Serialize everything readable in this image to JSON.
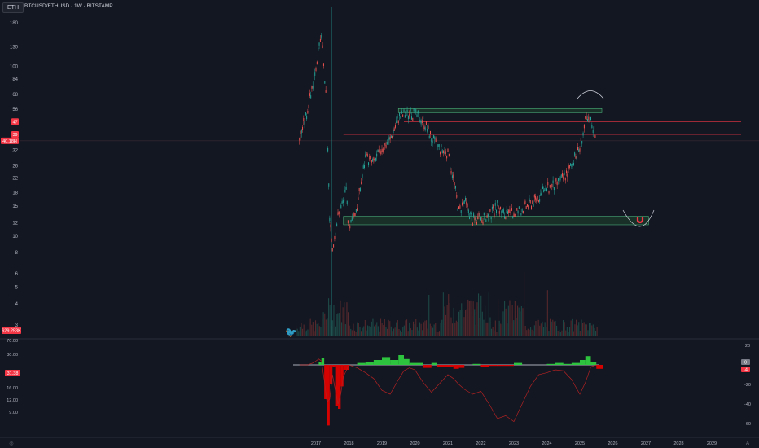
{
  "header": {
    "symbol_badge": "ETH",
    "title": "BTCUSD/ETHUSD · 1W · BITSTAMP"
  },
  "colors": {
    "background": "#131722",
    "up": "#26a69a",
    "down": "#ef5350",
    "zone_fill": "#1b3a2b",
    "zone_stroke": "#4caf7a",
    "level_line": "#f23645",
    "osc_green": "#2ecc40",
    "osc_red": "#e00000"
  },
  "price_axis": {
    "scale": "log",
    "ticks": [
      "180",
      "130",
      "100",
      "84",
      "68",
      "56",
      "47",
      "39",
      "32",
      "26",
      "22",
      "18",
      "15",
      "12",
      "10",
      "8",
      "6",
      "5",
      "4",
      "3"
    ],
    "tick_values": [
      180,
      130,
      100,
      84,
      68,
      56,
      47,
      39,
      32,
      26,
      22,
      18,
      15,
      12,
      10,
      8,
      6,
      5,
      4,
      3
    ],
    "badges": [
      {
        "label": "47",
        "value": 47,
        "color": "#f23645"
      },
      {
        "label": "39",
        "value": 39.5,
        "color": "#f23645"
      },
      {
        "label": "40.18H",
        "value": 36.2,
        "color": "#f23645"
      }
    ],
    "volume_badge": "629,253K"
  },
  "oscillator_left_axis": {
    "ticks": [
      "70.00",
      "30.00",
      "22.00",
      "16.00",
      "12.00",
      "9.00"
    ],
    "badge": "31.38"
  },
  "oscillator_right_axis": {
    "ticks": [
      "20",
      "-20",
      "-40",
      "-60"
    ],
    "tick_values": [
      20,
      -20,
      -40,
      -60
    ],
    "badges": [
      "0",
      "-4"
    ]
  },
  "time_axis": {
    "labels": [
      "2017",
      "2018",
      "2019",
      "2020",
      "2021",
      "2022",
      "2023",
      "2024",
      "2025",
      "2026",
      "2027",
      "2028",
      "2029"
    ]
  },
  "chart_data": {
    "type": "line",
    "title": "BTCUSD/ETHUSD · 1W · BITSTAMP",
    "x": [
      "2016-07",
      "2016-10",
      "2017-01",
      "2017-03",
      "2017-05",
      "2017-06",
      "2017-07",
      "2017-09",
      "2017-12",
      "2018-01",
      "2018-04",
      "2018-07",
      "2018-10",
      "2019-01",
      "2019-04",
      "2019-07",
      "2019-09",
      "2020-01",
      "2020-04",
      "2020-07",
      "2020-09",
      "2021-01",
      "2021-03",
      "2021-05",
      "2021-07",
      "2021-10",
      "2022-01",
      "2022-04",
      "2022-07",
      "2022-10",
      "2023-01",
      "2023-04",
      "2023-07",
      "2023-10",
      "2024-01",
      "2024-04",
      "2024-07",
      "2024-10",
      "2025-01",
      "2025-03",
      "2025-05",
      "2025-07"
    ],
    "series": [
      {
        "values": [
          38,
          55,
          100,
          150,
          55,
          12,
          8.5,
          13,
          18,
          11,
          15,
          29,
          27,
          33,
          37,
          50,
          52,
          52,
          48,
          38,
          34,
          30,
          22,
          14,
          16,
          12.5,
          12.5,
          13,
          15,
          13,
          13.5,
          14.5,
          15.5,
          17,
          19,
          20,
          22,
          26,
          33,
          47,
          47,
          39
        ]
      }
    ],
    "ylim": [
      2.5,
      200
    ],
    "annotations": [
      {
        "type": "zone",
        "label": "resistance zone",
        "x": [
          "2019-07",
          "2025-09"
        ],
        "y": [
          53,
          56
        ]
      },
      {
        "type": "zone",
        "label": "support zone",
        "x": [
          "2017-11",
          "2027-02"
        ],
        "y": [
          11.6,
          13
        ]
      },
      {
        "type": "hline",
        "y": 47,
        "x_start": "2019-09"
      },
      {
        "type": "hline",
        "y": 39.5,
        "x_start": "2017-11"
      }
    ]
  },
  "oscillator_data": {
    "type": "area",
    "x": [
      "2016-07",
      "2016-10",
      "2016-12",
      "2017-02",
      "2017-03",
      "2017-04",
      "2017-05",
      "2017-06",
      "2017-07",
      "2017-08",
      "2017-09",
      "2017-10",
      "2017-11",
      "2018-01",
      "2018-04",
      "2018-07",
      "2018-10",
      "2019-01",
      "2019-04",
      "2019-07",
      "2019-09",
      "2019-11",
      "2020-01",
      "2020-04",
      "2020-07",
      "2020-09",
      "2021-01",
      "2021-03",
      "2021-05",
      "2021-07",
      "2021-10",
      "2022-01",
      "2022-04",
      "2022-07",
      "2022-10",
      "2023-01",
      "2023-04",
      "2023-07",
      "2023-10",
      "2024-01",
      "2024-04",
      "2024-07",
      "2024-10",
      "2025-01",
      "2025-03",
      "2025-05",
      "2025-07"
    ],
    "histogram": [
      0,
      0,
      0,
      3,
      7,
      -35,
      -62,
      -20,
      -2,
      -42,
      -45,
      -22,
      -5,
      0,
      2,
      3,
      5,
      8,
      5,
      10,
      6,
      2,
      2,
      -3,
      2,
      -2,
      -2,
      -4,
      -3,
      0,
      1,
      -2,
      -1,
      -1,
      -1,
      2,
      0,
      0,
      0,
      1,
      2,
      1,
      2,
      5,
      9,
      3,
      -4
    ],
    "signal": [
      0,
      0,
      2,
      6,
      4,
      -15,
      -38,
      -35,
      -10,
      -25,
      -40,
      -30,
      -12,
      0,
      -3,
      -8,
      -14,
      -26,
      -30,
      -15,
      -6,
      -3,
      -5,
      -18,
      -28,
      -22,
      -10,
      -14,
      -20,
      -25,
      -30,
      -27,
      -40,
      -55,
      -52,
      -58,
      -40,
      -22,
      -10,
      -8,
      -5,
      -6,
      -15,
      -30,
      -18,
      -2,
      0
    ],
    "ylim": [
      -70,
      25
    ]
  }
}
